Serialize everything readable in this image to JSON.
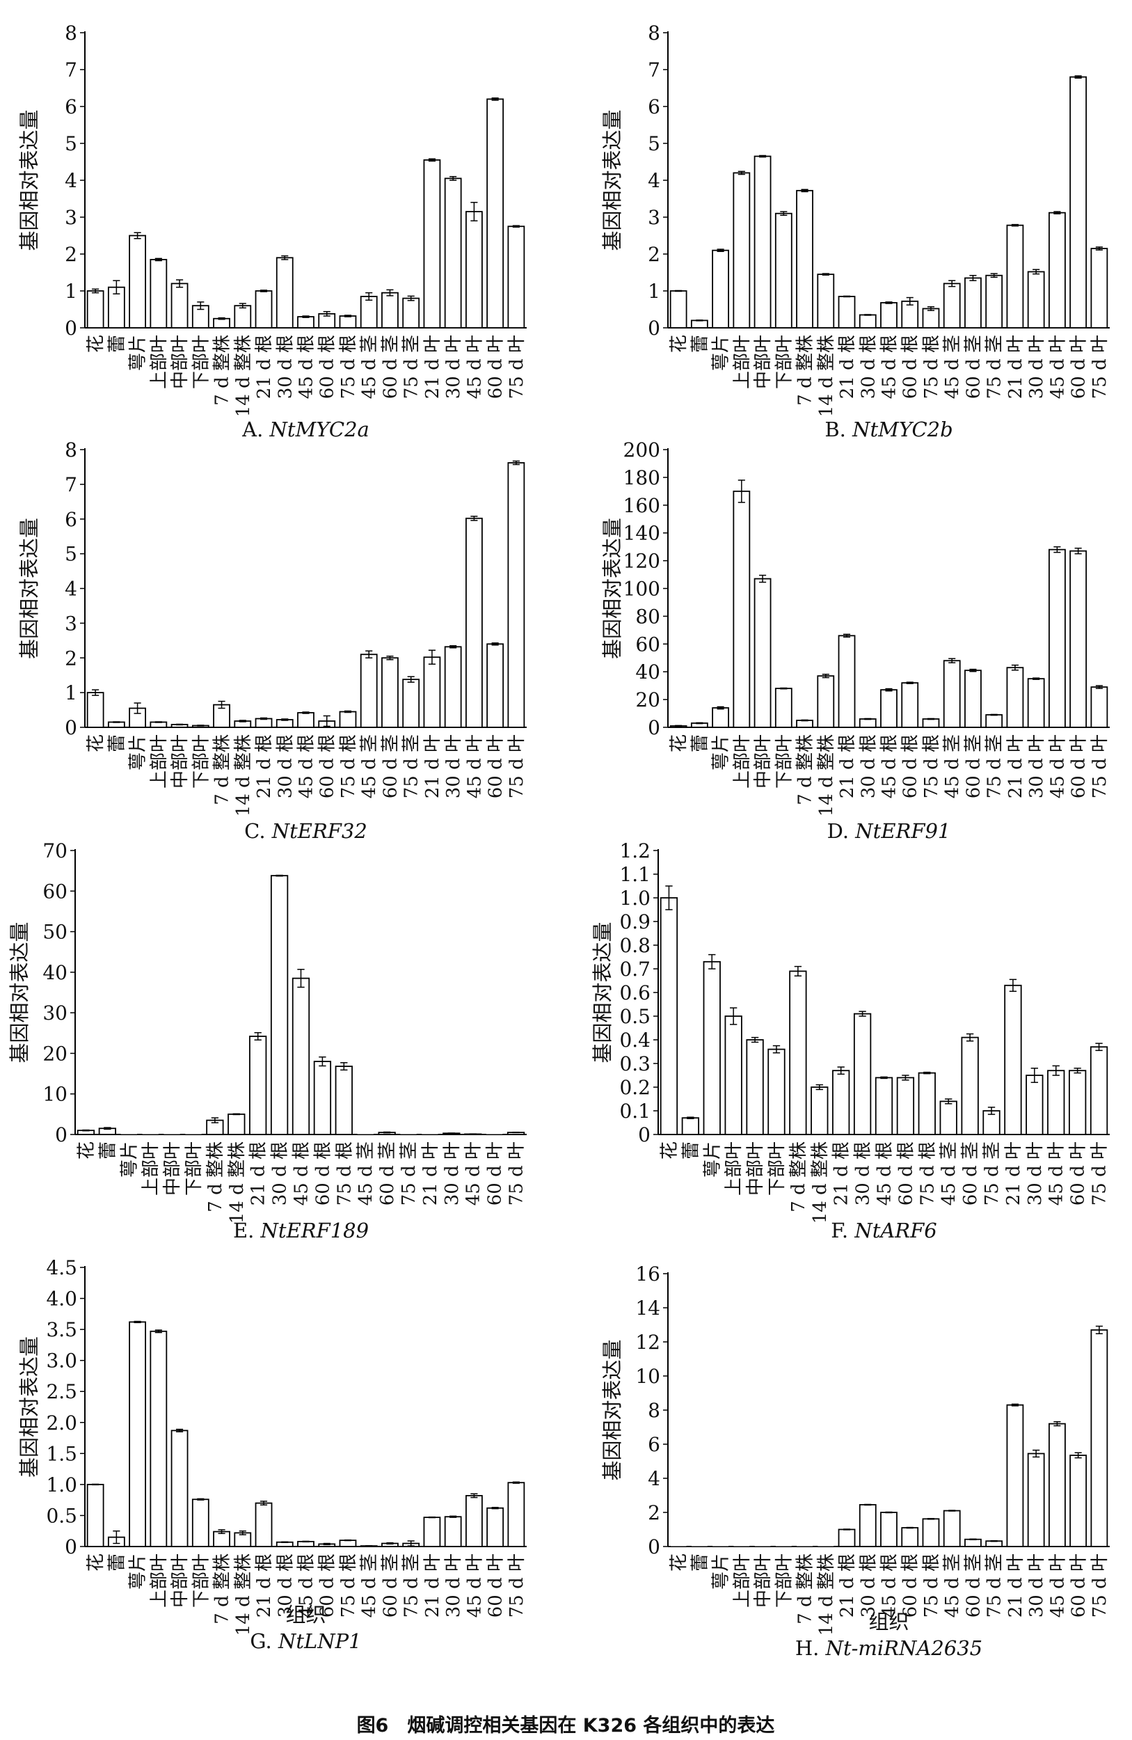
{
  "figure_caption": "图6　烟碱调控相关基因在 K326 各组织中的表达",
  "y_label": "基因相对表达量",
  "x_label": "组织",
  "categories": [
    "花",
    "蕾",
    "萼片",
    "上部叶",
    "中部叶",
    "下部叶",
    "7 d 整株",
    "14 d 整株",
    "21 d 根",
    "30 d 根",
    "45 d 根",
    "60 d 根",
    "75 d 根",
    "45 d 茎",
    "60 d 茎",
    "75 d 茎",
    "21 d 叶",
    "30 d 叶",
    "45 d 叶",
    "60 d 叶",
    "75 d 叶"
  ],
  "chart_data": [
    {
      "type": "bar",
      "panel": "A. ",
      "title": "NtMYC2a",
      "ylim": [
        0,
        8
      ],
      "yticks": [
        "0",
        "1",
        "2",
        "3",
        "4",
        "5",
        "6",
        "7",
        "8"
      ],
      "values": [
        1.0,
        1.1,
        2.5,
        1.85,
        1.2,
        0.6,
        0.25,
        0.6,
        1.0,
        1.9,
        0.3,
        0.38,
        0.32,
        0.85,
        0.95,
        0.8,
        4.55,
        4.05,
        3.15,
        6.2,
        2.75
      ],
      "errors": [
        0.05,
        0.18,
        0.08,
        0.03,
        0.1,
        0.1,
        0.02,
        0.06,
        0.02,
        0.05,
        0.02,
        0.06,
        0.02,
        0.1,
        0.08,
        0.06,
        0.03,
        0.05,
        0.25,
        0.03,
        0.02
      ]
    },
    {
      "type": "bar",
      "panel": "B. ",
      "title": "NtMYC2b",
      "ylim": [
        0,
        8
      ],
      "yticks": [
        "0",
        "1",
        "2",
        "3",
        "4",
        "5",
        "6",
        "7",
        "8"
      ],
      "values": [
        1.0,
        0.2,
        2.1,
        4.2,
        4.65,
        3.1,
        3.72,
        1.45,
        0.85,
        0.35,
        0.68,
        0.72,
        0.52,
        1.2,
        1.35,
        1.42,
        2.78,
        1.52,
        3.12,
        6.8,
        2.15
      ],
      "errors": [
        0.01,
        0.01,
        0.03,
        0.04,
        0.02,
        0.05,
        0.03,
        0.02,
        0.01,
        0.01,
        0.02,
        0.1,
        0.05,
        0.08,
        0.07,
        0.05,
        0.02,
        0.06,
        0.03,
        0.03,
        0.04
      ]
    },
    {
      "type": "bar",
      "panel": "C. ",
      "title": "NtERF32",
      "ylim": [
        0,
        8
      ],
      "yticks": [
        "0",
        "1",
        "2",
        "3",
        "4",
        "5",
        "6",
        "7",
        "8"
      ],
      "values": [
        1.0,
        0.15,
        0.55,
        0.15,
        0.08,
        0.05,
        0.65,
        0.18,
        0.25,
        0.22,
        0.42,
        0.18,
        0.45,
        2.1,
        2.0,
        1.38,
        2.02,
        2.32,
        6.02,
        2.4,
        7.62
      ],
      "errors": [
        0.08,
        0.01,
        0.15,
        0.01,
        0.01,
        0.01,
        0.1,
        0.02,
        0.02,
        0.02,
        0.02,
        0.15,
        0.02,
        0.1,
        0.05,
        0.08,
        0.2,
        0.03,
        0.06,
        0.03,
        0.05
      ]
    },
    {
      "type": "bar",
      "panel": "D. ",
      "title": "NtERF91",
      "ylim": [
        0,
        200
      ],
      "yticks": [
        "0",
        "20",
        "40",
        "60",
        "80",
        "100",
        "120",
        "140",
        "160",
        "180",
        "200"
      ],
      "values": [
        1,
        3,
        14,
        170,
        107,
        28,
        5,
        37,
        66,
        6,
        27,
        32,
        6,
        48,
        41,
        9,
        43,
        35,
        128,
        127,
        29
      ],
      "errors": [
        0.3,
        0.3,
        0.8,
        8,
        2.5,
        0.3,
        0.3,
        1.2,
        1,
        0.3,
        0.8,
        0.5,
        0.3,
        1.5,
        0.8,
        0.3,
        1.8,
        0.5,
        2,
        2,
        1
      ]
    },
    {
      "type": "bar",
      "panel": "E. ",
      "title": "NtERF189",
      "ylim": [
        0,
        70
      ],
      "yticks": [
        "0",
        "10",
        "20",
        "30",
        "40",
        "50",
        "60",
        "70"
      ],
      "values": [
        1.0,
        1.5,
        0,
        0,
        0,
        0,
        3.5,
        5.0,
        24.2,
        63.8,
        38.5,
        18.0,
        16.8,
        0,
        0.5,
        0,
        0,
        0.3,
        0.1,
        0,
        0.5
      ],
      "errors": [
        0.1,
        0.2,
        0,
        0,
        0,
        0,
        0.6,
        0.1,
        0.9,
        0.1,
        2.2,
        1.1,
        0.9,
        0,
        0.1,
        0,
        0,
        0.05,
        0.05,
        0,
        0.05
      ]
    },
    {
      "type": "bar",
      "panel": "F. ",
      "title": "NtARF6",
      "ylim": [
        0,
        1.2
      ],
      "yticks": [
        "0",
        "0.1",
        "0.2",
        "0.3",
        "0.4",
        "0.5",
        "0.6",
        "0.7",
        "0.8",
        "0.9",
        "1.0",
        "1.1",
        "1.2"
      ],
      "values": [
        1.0,
        0.07,
        0.73,
        0.5,
        0.4,
        0.36,
        0.69,
        0.2,
        0.27,
        0.51,
        0.24,
        0.24,
        0.26,
        0.14,
        0.41,
        0.1,
        0.63,
        0.25,
        0.27,
        0.27,
        0.37
      ],
      "errors": [
        0.05,
        0.003,
        0.03,
        0.035,
        0.01,
        0.015,
        0.02,
        0.01,
        0.015,
        0.01,
        0.003,
        0.01,
        0.003,
        0.01,
        0.015,
        0.015,
        0.025,
        0.03,
        0.02,
        0.01,
        0.015
      ]
    },
    {
      "type": "bar",
      "panel": "G. ",
      "title": "NtLNP1",
      "ylim": [
        0,
        4.5
      ],
      "yticks": [
        "0",
        "0.5",
        "1.0",
        "1.5",
        "2.0",
        "2.5",
        "3.0",
        "3.5",
        "4.0",
        "4.5"
      ],
      "values": [
        1.0,
        0.15,
        3.62,
        3.47,
        1.87,
        0.76,
        0.24,
        0.22,
        0.7,
        0.07,
        0.08,
        0.04,
        0.1,
        0.01,
        0.05,
        0.05,
        0.47,
        0.48,
        0.82,
        0.62,
        1.03
      ],
      "errors": [
        0.005,
        0.1,
        0.01,
        0.02,
        0.02,
        0.01,
        0.03,
        0.03,
        0.03,
        0.005,
        0.005,
        0.01,
        0.005,
        0.003,
        0.01,
        0.04,
        0.005,
        0.01,
        0.03,
        0.01,
        0.01
      ]
    },
    {
      "type": "bar",
      "panel": "H. ",
      "title": "Nt-miRNA2635",
      "ylim": [
        0,
        16
      ],
      "yticks": [
        "0",
        "2",
        "4",
        "6",
        "8",
        "10",
        "12",
        "14",
        "16"
      ],
      "values": [
        0,
        0,
        0,
        0,
        0,
        0,
        0,
        0,
        1.0,
        2.45,
        2.0,
        1.1,
        1.62,
        2.1,
        0.42,
        0.32,
        8.3,
        5.45,
        7.2,
        5.35,
        12.7
      ],
      "errors": [
        0,
        0,
        0,
        0,
        0,
        0,
        0,
        0,
        0.02,
        0.02,
        0.02,
        0.02,
        0.02,
        0.02,
        0.02,
        0.02,
        0.05,
        0.2,
        0.12,
        0.15,
        0.22
      ]
    }
  ]
}
